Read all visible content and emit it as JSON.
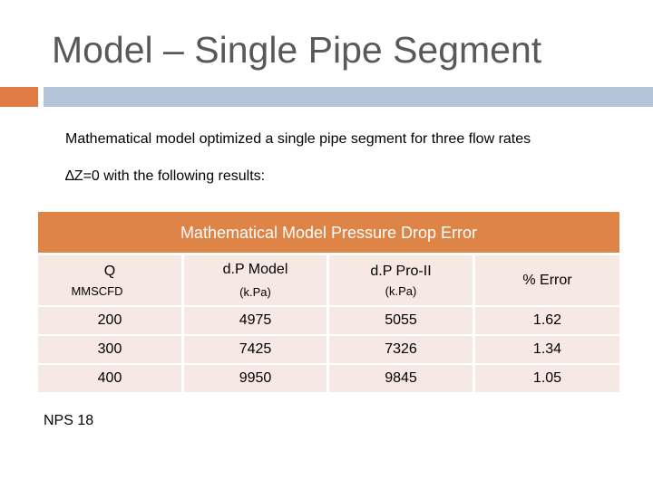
{
  "slide": {
    "title": "Model – Single Pipe Segment",
    "line1": "Mathematical model optimized a single pipe segment for three flow rates",
    "line2": "∆Z=0  with the following results:",
    "footnote": "NPS 18"
  },
  "table": {
    "header": "Mathematical Model Pressure Drop Error",
    "columns": [
      {
        "label": "Q",
        "unit": "MMSCFD"
      },
      {
        "label": "d.P Model",
        "unit": "(k.Pa)"
      },
      {
        "label": "d.P Pro-II",
        "unit": "(k.Pa)"
      },
      {
        "label": "% Error",
        "unit": ""
      }
    ],
    "rows": [
      [
        "200",
        "4975",
        "5055",
        "1.62"
      ],
      [
        "300",
        "7425",
        "7326",
        "1.34"
      ],
      [
        "400",
        "9950",
        "9845",
        "1.05"
      ]
    ]
  },
  "colors": {
    "accent": "#de8447",
    "rule_orange": "#e07b46",
    "rule_blue": "#b4c5da",
    "cell_bg": "#f6e8e3",
    "title_gray": "#595959"
  }
}
